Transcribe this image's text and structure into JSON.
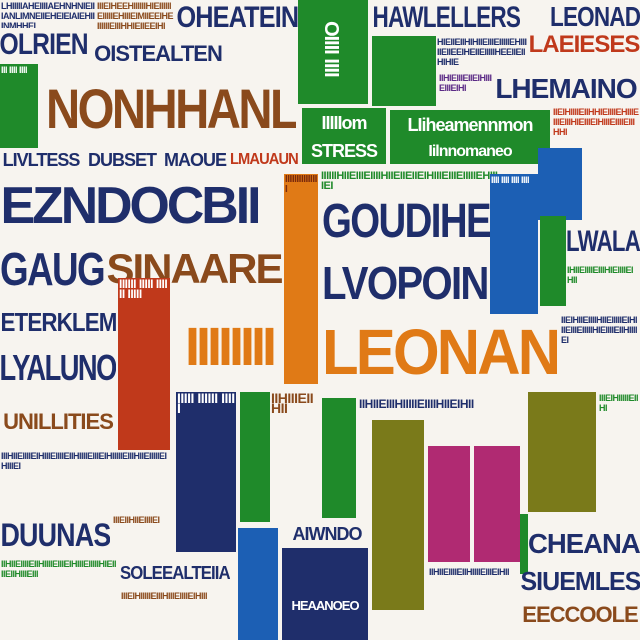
{
  "colors": {
    "background": "#f7f4ef",
    "navy": "#1f2e6b",
    "green": "#1f8a2a",
    "red": "#c0391b",
    "orange": "#e07a16",
    "purple": "#5b2a86",
    "blue": "#1c5fb4",
    "brown": "#8a4a1c",
    "magenta": "#b02a72",
    "olive": "#7a7a1a",
    "teal": "#117a7a"
  },
  "words": {
    "ohealtein": "OHEATEIN",
    "hawelleiers": "HAWLELLERS",
    "leonad": "LEONAD",
    "lalerlin": "LAEIESES",
    "olrien": "OLRIEN",
    "oistealten": "OISTEALTEN",
    "nonhhanl": "NONHHANL",
    "lhemaino": "LHEMAINO",
    "llolaaneomo": "LIONIONOMA",
    "green_left": "IIIIIom",
    "green_left2": "STRESS",
    "green_right": "LIiheamennmon",
    "green_right2": "Iilnnomaneo",
    "lvltess": "LIVLTESS",
    "dubset": "DUBSET",
    "maoue": "MAOUE",
    "lmalaun": "LMAUAUN",
    "ezndocbi": "EZNDOCBII",
    "goudihe": "GOUDIHE",
    "lwala": "LWALA",
    "gaug": "GAUG",
    "sinaare": "SINAARE",
    "lvopoin": "LVOPOIN",
    "eterklem": "ETERKLEM",
    "leonan": "LEONAN",
    "lyaluno": "LYALUNO",
    "unllities": "UNILLITIES",
    "duwnas": "DUUNAS",
    "cheana": "CHEANA",
    "siuemles": "SIUEMLES",
    "aiwndo": "AIWNDO",
    "boleeateiia": "SOLEEALTEIIA",
    "heaanoeo": "HEAANOEO",
    "eeecuoole": "EECCOOLE"
  }
}
